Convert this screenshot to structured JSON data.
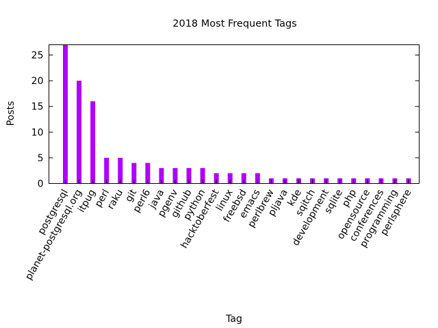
{
  "chart_data": {
    "type": "bar",
    "title": "2018 Most Frequent Tags",
    "xlabel": "Tag",
    "ylabel": "Posts",
    "ylim": [
      0,
      27
    ],
    "yticks": [
      0,
      5,
      10,
      15,
      20,
      25
    ],
    "bar_color": "#b000ff",
    "grid": false,
    "categories": [
      "postgresql",
      "planet-postgresql.org",
      "itpug",
      "perl",
      "raku",
      "git",
      "perl6",
      "java",
      "pgenv",
      "github",
      "python",
      "hacktoberfest",
      "linux",
      "freebsd",
      "emacs",
      "perlbrew",
      "pljava",
      "kde",
      "sqitch",
      "development",
      "sqlite",
      "php",
      "opensource",
      "conferences",
      "programming",
      "perlsphere"
    ],
    "values": [
      27,
      20,
      16,
      5,
      5,
      4,
      4,
      3,
      3,
      3,
      3,
      2,
      2,
      2,
      2,
      1,
      1,
      1,
      1,
      1,
      1,
      1,
      1,
      1,
      1,
      1
    ]
  }
}
